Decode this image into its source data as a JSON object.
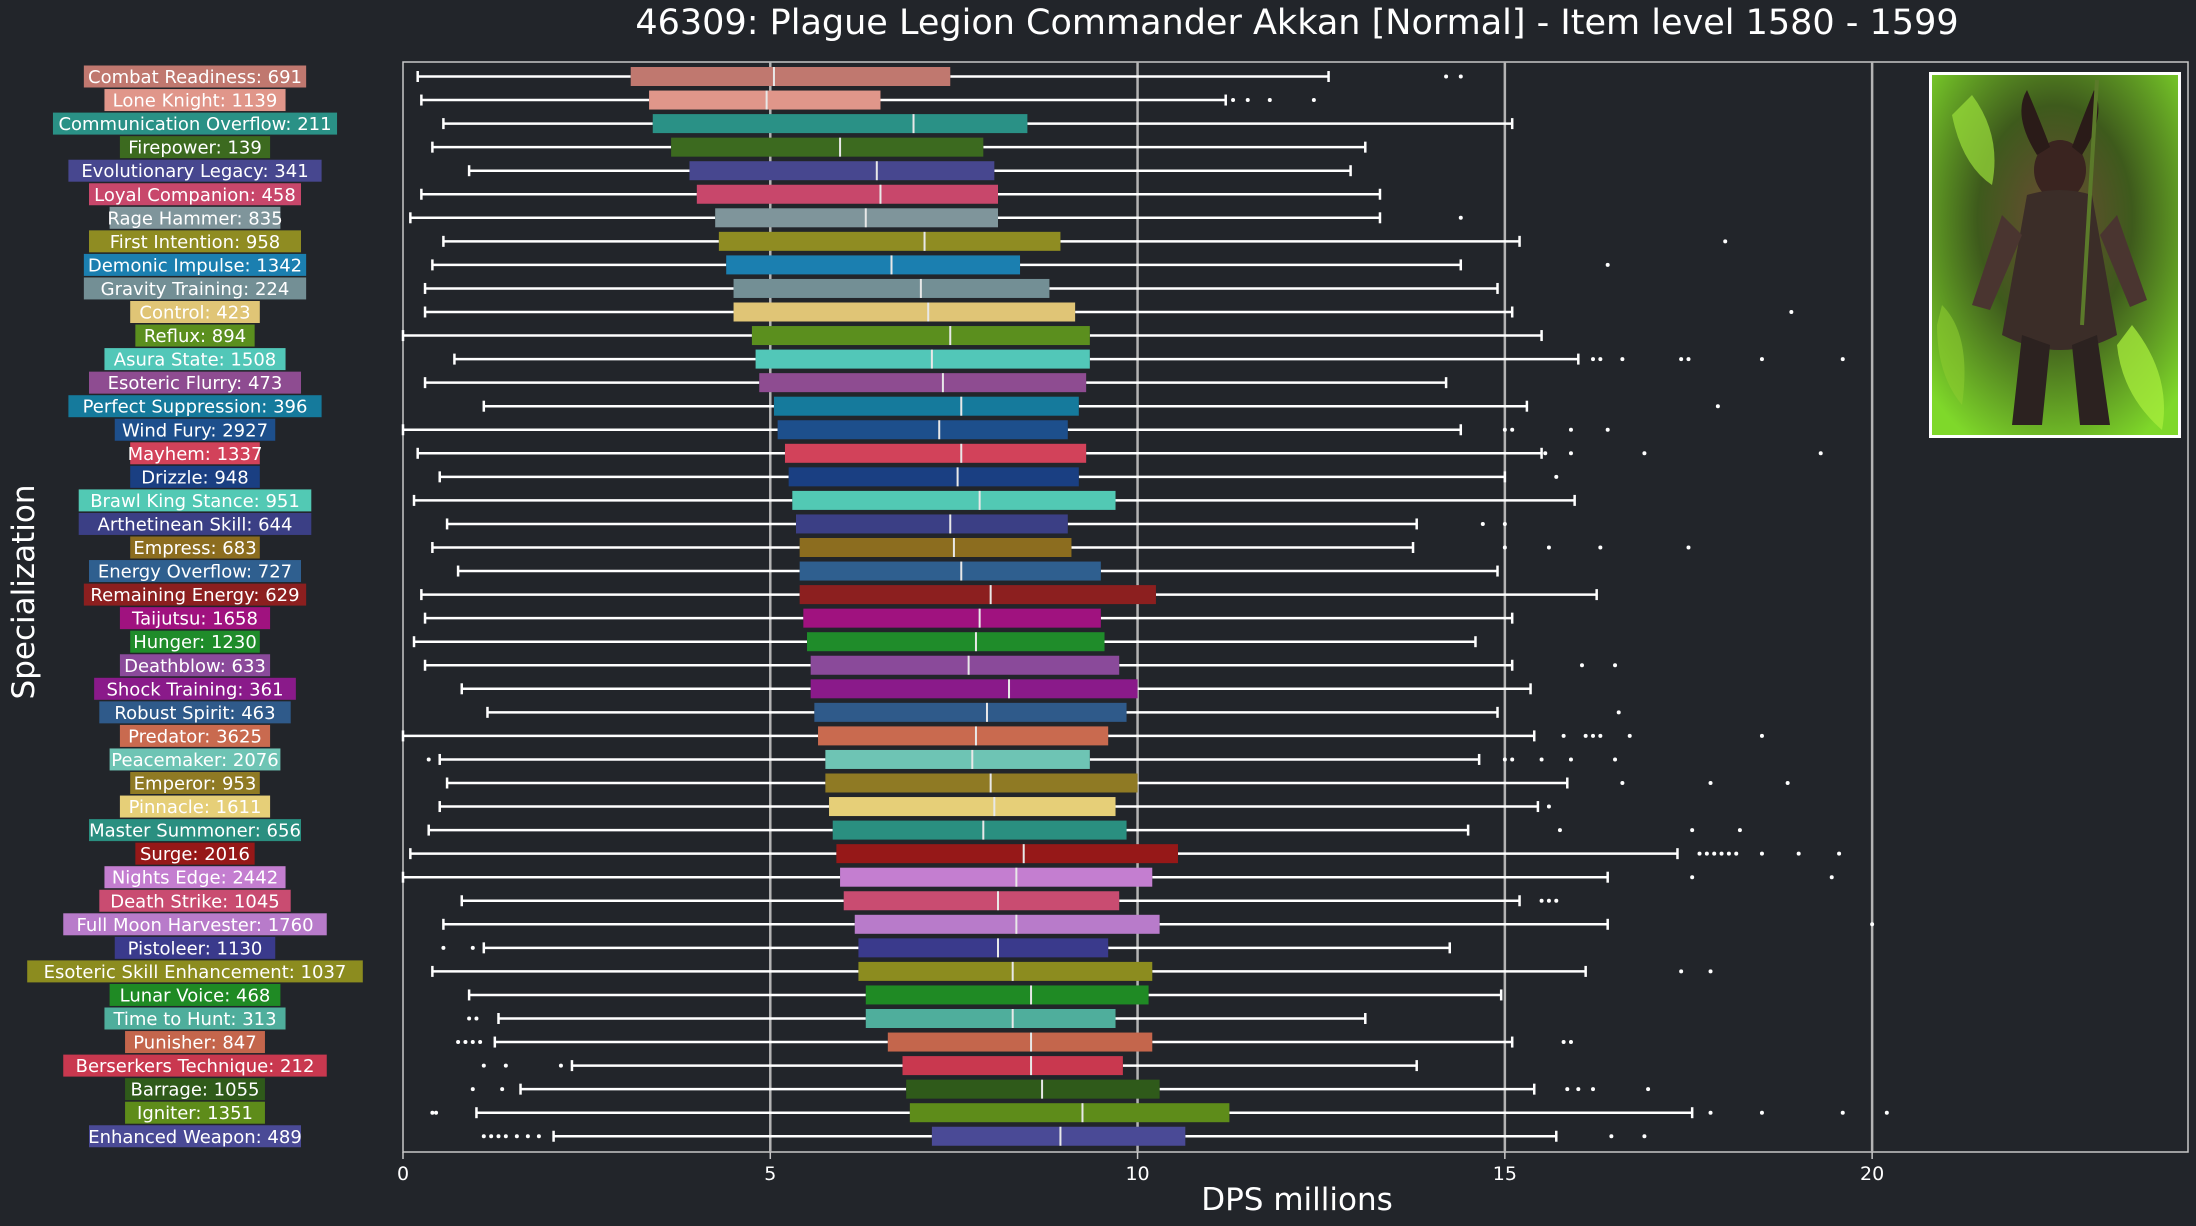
{
  "chart_data": {
    "type": "box",
    "title": "46309: Plague Legion Commander Akkan [Normal] - Item level 1580 - 1599",
    "xlabel": "DPS millions",
    "ylabel": "Specialization",
    "xlim": [
      0,
      24.3
    ],
    "xticks": [
      0,
      5,
      10,
      15,
      20
    ],
    "gridlines": [
      5,
      10,
      15,
      20
    ],
    "grid": "vertical at major ticks",
    "boss_image": "plague-legion-commander-akkan-portrait",
    "series": [
      {
        "label": "Combat Readiness: 691",
        "color": "#c0786f",
        "whisker_low": 0.2,
        "q1": 3.1,
        "median": 5.05,
        "q3": 7.45,
        "whisker_high": 12.6,
        "outliers": [
          14.2,
          14.4
        ]
      },
      {
        "label": "Lone Knight: 1139",
        "color": "#e0968a",
        "whisker_low": 0.25,
        "q1": 3.35,
        "median": 4.95,
        "q3": 6.5,
        "whisker_high": 11.2,
        "outliers": [
          11.3,
          11.5,
          11.8,
          12.4
        ]
      },
      {
        "label": "Communication Overflow: 211",
        "color": "#2a9186",
        "whisker_low": 0.55,
        "q1": 3.4,
        "median": 6.95,
        "q3": 8.5,
        "whisker_high": 15.1,
        "outliers": []
      },
      {
        "label": "Firepower: 139",
        "color": "#3c6a1f",
        "whisker_low": 0.4,
        "q1": 3.65,
        "median": 5.95,
        "q3": 7.9,
        "whisker_high": 13.1,
        "outliers": []
      },
      {
        "label": "Evolutionary Legacy: 341",
        "color": "#47478f",
        "whisker_low": 0.9,
        "q1": 3.9,
        "median": 6.45,
        "q3": 8.05,
        "whisker_high": 12.9,
        "outliers": []
      },
      {
        "label": "Loyal Companion: 458",
        "color": "#c8476b",
        "whisker_low": 0.25,
        "q1": 4.0,
        "median": 6.5,
        "q3": 8.1,
        "whisker_high": 13.3,
        "outliers": []
      },
      {
        "label": "Rage Hammer: 835",
        "color": "#7f959b",
        "whisker_low": 0.1,
        "q1": 4.25,
        "median": 6.3,
        "q3": 8.1,
        "whisker_high": 13.3,
        "outliers": [
          14.4
        ]
      },
      {
        "label": "First Intention: 958",
        "color": "#8f8c22",
        "whisker_low": 0.55,
        "q1": 4.3,
        "median": 7.1,
        "q3": 8.95,
        "whisker_high": 15.2,
        "outliers": [
          18.0
        ]
      },
      {
        "label": "Demonic Impulse: 1342",
        "color": "#1b7fb0",
        "whisker_low": 0.4,
        "q1": 4.4,
        "median": 6.65,
        "q3": 8.4,
        "whisker_high": 14.4,
        "outliers": [
          16.4
        ]
      },
      {
        "label": "Gravity Training: 224",
        "color": "#738f95",
        "whisker_low": 0.3,
        "q1": 4.5,
        "median": 7.05,
        "q3": 8.8,
        "whisker_high": 14.9,
        "outliers": []
      },
      {
        "label": "Control: 423",
        "color": "#e0c576",
        "whisker_low": 0.3,
        "q1": 4.5,
        "median": 7.15,
        "q3": 9.15,
        "whisker_high": 15.1,
        "outliers": [
          18.9
        ]
      },
      {
        "label": "Reflux: 894",
        "color": "#5b8f1e",
        "whisker_low": 0.0,
        "q1": 4.75,
        "median": 7.45,
        "q3": 9.35,
        "whisker_high": 15.5,
        "outliers": []
      },
      {
        "label": "Asura State: 1508",
        "color": "#52c7b8",
        "whisker_low": 0.7,
        "q1": 4.8,
        "median": 7.2,
        "q3": 9.35,
        "whisker_high": 16.0,
        "outliers": [
          16.2,
          16.3,
          16.6,
          17.4,
          17.5,
          18.5,
          19.6
        ]
      },
      {
        "label": "Esoteric Flurry: 473",
        "color": "#8e4c91",
        "whisker_low": 0.3,
        "q1": 4.85,
        "median": 7.35,
        "q3": 9.3,
        "whisker_high": 14.2,
        "outliers": []
      },
      {
        "label": "Perfect Suppression: 396",
        "color": "#157a9c",
        "whisker_low": 1.1,
        "q1": 5.05,
        "median": 7.6,
        "q3": 9.2,
        "whisker_high": 15.3,
        "outliers": [
          17.9
        ]
      },
      {
        "label": "Wind Fury: 2927",
        "color": "#1d4f8c",
        "whisker_low": 0.0,
        "q1": 5.1,
        "median": 7.3,
        "q3": 9.05,
        "whisker_high": 14.4,
        "outliers": [
          15.0,
          15.1,
          15.9,
          16.4
        ]
      },
      {
        "label": "Mayhem: 1337",
        "color": "#d2425a",
        "whisker_low": 0.2,
        "q1": 5.2,
        "median": 7.6,
        "q3": 9.3,
        "whisker_high": 15.5,
        "outliers": [
          15.55,
          15.9,
          16.9,
          19.3
        ]
      },
      {
        "label": "Drizzle: 948",
        "color": "#1a3f82",
        "whisker_low": 0.5,
        "q1": 5.25,
        "median": 7.55,
        "q3": 9.2,
        "whisker_high": 15.0,
        "outliers": [
          15.7
        ]
      },
      {
        "label": "Brawl King Stance: 951",
        "color": "#52c9b4",
        "whisker_low": 0.15,
        "q1": 5.3,
        "median": 7.85,
        "q3": 9.7,
        "whisker_high": 15.95,
        "outliers": []
      },
      {
        "label": "Arthetinean Skill: 644",
        "color": "#3b3f85",
        "whisker_low": 0.6,
        "q1": 5.35,
        "median": 7.45,
        "q3": 9.05,
        "whisker_high": 13.8,
        "outliers": [
          14.7,
          15.0
        ]
      },
      {
        "label": "Empress: 683",
        "color": "#8c6d1f",
        "whisker_low": 0.4,
        "q1": 5.4,
        "median": 7.5,
        "q3": 9.1,
        "whisker_high": 13.75,
        "outliers": [
          15.0,
          15.6,
          16.3,
          17.5
        ]
      },
      {
        "label": "Energy Overflow: 727",
        "color": "#2f5f8f",
        "whisker_low": 0.75,
        "q1": 5.4,
        "median": 7.6,
        "q3": 9.5,
        "whisker_high": 14.9,
        "outliers": []
      },
      {
        "label": "Remaining Energy: 629",
        "color": "#8c1f1f",
        "whisker_low": 0.25,
        "q1": 5.4,
        "median": 8.0,
        "q3": 10.25,
        "whisker_high": 16.25,
        "outliers": []
      },
      {
        "label": "Taijutsu: 1658",
        "color": "#a0127f",
        "whisker_low": 0.3,
        "q1": 5.45,
        "median": 7.85,
        "q3": 9.5,
        "whisker_high": 15.1,
        "outliers": []
      },
      {
        "label": "Hunger: 1230",
        "color": "#1f8c2a",
        "whisker_low": 0.15,
        "q1": 5.5,
        "median": 7.8,
        "q3": 9.55,
        "whisker_high": 14.6,
        "outliers": []
      },
      {
        "label": "Deathblow: 633",
        "color": "#8a4a9a",
        "whisker_low": 0.3,
        "q1": 5.55,
        "median": 7.7,
        "q3": 9.75,
        "whisker_high": 15.1,
        "outliers": [
          16.05,
          16.5
        ]
      },
      {
        "label": "Shock Training: 361",
        "color": "#8a1a8a",
        "whisker_low": 0.8,
        "q1": 5.55,
        "median": 8.25,
        "q3": 10.0,
        "whisker_high": 15.35,
        "outliers": []
      },
      {
        "label": "Robust Spirit: 463",
        "color": "#2f5a8a",
        "whisker_low": 1.15,
        "q1": 5.6,
        "median": 7.95,
        "q3": 9.85,
        "whisker_high": 14.9,
        "outliers": [
          16.55
        ]
      },
      {
        "label": "Predator: 3625",
        "color": "#c96a4f",
        "whisker_low": 0.0,
        "q1": 5.65,
        "median": 7.8,
        "q3": 9.6,
        "whisker_high": 15.4,
        "outliers": [
          15.8,
          16.1,
          16.2,
          16.3,
          16.7,
          18.5
        ]
      },
      {
        "label": "Peacemaker: 2076",
        "color": "#6ec4b4",
        "whisker_low": 0.5,
        "q1": 5.75,
        "median": 7.75,
        "q3": 9.35,
        "whisker_high": 14.65,
        "outliers": [
          0.35,
          15.0,
          15.1,
          15.5,
          15.9,
          16.5
        ]
      },
      {
        "label": "Emperor: 953",
        "color": "#8f7a24",
        "whisker_low": 0.6,
        "q1": 5.75,
        "median": 8.0,
        "q3": 10.0,
        "whisker_high": 15.85,
        "outliers": [
          16.6,
          17.8,
          18.85
        ]
      },
      {
        "label": "Pinnacle: 1611",
        "color": "#e6cf78",
        "whisker_low": 0.5,
        "q1": 5.8,
        "median": 8.05,
        "q3": 9.7,
        "whisker_high": 15.45,
        "outliers": [
          15.6
        ]
      },
      {
        "label": "Master Summoner: 656",
        "color": "#2a8f80",
        "whisker_low": 0.35,
        "q1": 5.85,
        "median": 7.9,
        "q3": 9.85,
        "whisker_high": 14.5,
        "outliers": [
          15.75,
          17.55,
          18.2
        ]
      },
      {
        "label": "Surge: 2016",
        "color": "#961818",
        "whisker_low": 0.1,
        "q1": 5.9,
        "median": 8.45,
        "q3": 10.55,
        "whisker_high": 17.35,
        "outliers": [
          17.65,
          17.75,
          17.85,
          17.95,
          18.05,
          18.15,
          18.5,
          19.0,
          19.55
        ]
      },
      {
        "label": "Nights Edge: 2442",
        "color": "#c47ed0",
        "whisker_low": 0.0,
        "q1": 5.95,
        "median": 8.35,
        "q3": 10.2,
        "whisker_high": 16.4,
        "outliers": [
          17.55,
          19.45
        ]
      },
      {
        "label": "Death Strike: 1045",
        "color": "#c94c71",
        "whisker_low": 0.8,
        "q1": 6.0,
        "median": 8.1,
        "q3": 9.75,
        "whisker_high": 15.2,
        "outliers": [
          15.5,
          15.6,
          15.7
        ]
      },
      {
        "label": "Full Moon Harvester: 1760",
        "color": "#b87bca",
        "whisker_low": 0.55,
        "q1": 6.15,
        "median": 8.35,
        "q3": 10.3,
        "whisker_high": 16.4,
        "outliers": [
          20.0
        ]
      },
      {
        "label": "Pistoleer: 1130",
        "color": "#3a3a8c",
        "whisker_low": 1.1,
        "q1": 6.2,
        "median": 8.1,
        "q3": 9.6,
        "whisker_high": 14.25,
        "outliers": [
          0.55,
          0.95
        ]
      },
      {
        "label": "Esoteric Skill Enhancement: 1037",
        "color": "#8c8c1f",
        "whisker_low": 0.4,
        "q1": 6.2,
        "median": 8.3,
        "q3": 10.2,
        "whisker_high": 16.1,
        "outliers": [
          17.4,
          17.8
        ]
      },
      {
        "label": "Lunar Voice: 468",
        "color": "#1f8a24",
        "whisker_low": 0.9,
        "q1": 6.3,
        "median": 8.55,
        "q3": 10.15,
        "whisker_high": 14.95,
        "outliers": []
      },
      {
        "label": "Time to Hunt: 313",
        "color": "#4fae9c",
        "whisker_low": 1.3,
        "q1": 6.3,
        "median": 8.3,
        "q3": 9.7,
        "whisker_high": 13.1,
        "outliers": [
          0.9,
          1.0
        ]
      },
      {
        "label": "Punisher: 847",
        "color": "#c4664c",
        "whisker_low": 1.25,
        "q1": 6.6,
        "median": 8.55,
        "q3": 10.2,
        "whisker_high": 15.1,
        "outliers": [
          0.75,
          0.85,
          0.95,
          1.05,
          15.8,
          15.9
        ]
      },
      {
        "label": "Berserkers Technique: 212",
        "color": "#c9384f",
        "whisker_low": 2.3,
        "q1": 6.8,
        "median": 8.55,
        "q3": 9.8,
        "whisker_high": 13.8,
        "outliers": [
          1.1,
          1.4,
          2.15
        ]
      },
      {
        "label": "Barrage: 1055",
        "color": "#2f5a1a",
        "whisker_low": 1.6,
        "q1": 6.85,
        "median": 8.7,
        "q3": 10.3,
        "whisker_high": 15.4,
        "outliers": [
          0.95,
          1.35,
          15.85,
          16.0,
          16.2,
          16.95
        ]
      },
      {
        "label": "Igniter: 1351",
        "color": "#5e8c1a",
        "whisker_low": 1.0,
        "q1": 6.9,
        "median": 9.25,
        "q3": 11.25,
        "whisker_high": 17.55,
        "outliers": [
          0.4,
          0.45,
          17.8,
          18.5,
          19.6,
          20.2
        ]
      },
      {
        "label": "Enhanced Weapon: 489",
        "color": "#4a4a96",
        "whisker_low": 2.05,
        "q1": 7.2,
        "median": 8.95,
        "q3": 10.65,
        "whisker_high": 15.7,
        "outliers": [
          1.1,
          1.2,
          1.3,
          1.4,
          1.55,
          1.7,
          1.85,
          16.45,
          16.9
        ]
      }
    ]
  }
}
